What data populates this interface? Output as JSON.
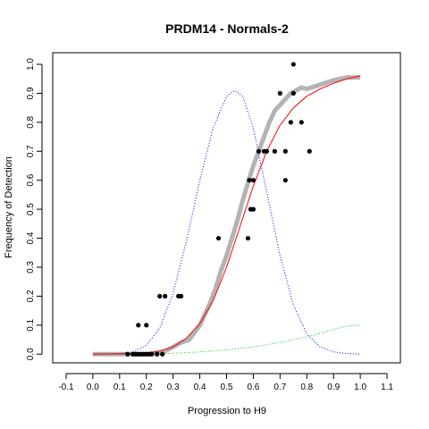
{
  "chart_data": {
    "type": "scatter",
    "title": "PRDM14 - Normals-2",
    "xlabel": "Progression to H9",
    "ylabel": "Frequency of Detection",
    "xlim": [
      -0.15,
      1.15
    ],
    "ylim": [
      -0.03,
      1.04
    ],
    "x_ticks": [
      "-0.1",
      "0.0",
      "0.1",
      "0.2",
      "0.3",
      "0.4",
      "0.5",
      "0.6",
      "0.7",
      "0.8",
      "0.9",
      "1.0",
      "1.1"
    ],
    "y_ticks": [
      "0.0",
      "0.1",
      "0.2",
      "0.3",
      "0.4",
      "0.5",
      "0.6",
      "0.7",
      "0.8",
      "0.9",
      "1.0"
    ],
    "grid": false,
    "legend": "none",
    "colors": {
      "observed": "#000000",
      "smoothed": "#b3b3b3",
      "fitted": "#ff0000",
      "blue_curve": "#0000ff",
      "green_curve": "#00cc00"
    },
    "series": [
      {
        "style": "black-points",
        "points": [
          [
            0.13,
            0.0
          ],
          [
            0.15,
            0.0
          ],
          [
            0.16,
            0.0
          ],
          [
            0.17,
            0.0
          ],
          [
            0.18,
            0.0
          ],
          [
            0.19,
            0.0
          ],
          [
            0.2,
            0.0
          ],
          [
            0.21,
            0.0
          ],
          [
            0.22,
            0.0
          ],
          [
            0.24,
            0.0
          ],
          [
            0.26,
            0.0
          ],
          [
            0.17,
            0.1
          ],
          [
            0.2,
            0.1
          ],
          [
            0.25,
            0.2
          ],
          [
            0.27,
            0.2
          ],
          [
            0.32,
            0.2
          ],
          [
            0.33,
            0.2
          ],
          [
            0.47,
            0.4
          ],
          [
            0.58,
            0.4
          ],
          [
            0.59,
            0.5
          ],
          [
            0.6,
            0.5
          ],
          [
            0.585,
            0.6
          ],
          [
            0.6,
            0.6
          ],
          [
            0.62,
            0.7
          ],
          [
            0.64,
            0.7
          ],
          [
            0.65,
            0.7
          ],
          [
            0.68,
            0.7
          ],
          [
            0.72,
            0.7
          ],
          [
            0.72,
            0.6
          ],
          [
            0.81,
            0.7
          ],
          [
            0.74,
            0.8
          ],
          [
            0.78,
            0.8
          ],
          [
            0.7,
            0.9
          ],
          [
            0.75,
            0.9
          ],
          [
            0.75,
            1.0
          ]
        ]
      },
      {
        "style": "grey-smoothed",
        "points": [
          [
            0.0,
            0.0
          ],
          [
            0.1,
            0.0
          ],
          [
            0.2,
            0.0
          ],
          [
            0.24,
            0.005
          ],
          [
            0.27,
            0.01
          ],
          [
            0.3,
            0.025
          ],
          [
            0.33,
            0.04
          ],
          [
            0.36,
            0.05
          ],
          [
            0.4,
            0.1
          ],
          [
            0.42,
            0.14
          ],
          [
            0.44,
            0.18
          ],
          [
            0.46,
            0.23
          ],
          [
            0.48,
            0.29
          ],
          [
            0.5,
            0.34
          ],
          [
            0.52,
            0.4
          ],
          [
            0.54,
            0.46
          ],
          [
            0.56,
            0.53
          ],
          [
            0.58,
            0.59
          ],
          [
            0.6,
            0.65
          ],
          [
            0.62,
            0.7
          ],
          [
            0.64,
            0.75
          ],
          [
            0.66,
            0.8
          ],
          [
            0.68,
            0.84
          ],
          [
            0.7,
            0.86
          ],
          [
            0.72,
            0.88
          ],
          [
            0.74,
            0.9
          ],
          [
            0.76,
            0.91
          ],
          [
            0.78,
            0.92
          ],
          [
            0.8,
            0.915
          ],
          [
            0.85,
            0.93
          ],
          [
            0.9,
            0.945
          ],
          [
            0.95,
            0.955
          ],
          [
            1.0,
            0.955
          ]
        ]
      },
      {
        "style": "red-fit",
        "points": [
          [
            0.0,
            0.0
          ],
          [
            0.1,
            0.001
          ],
          [
            0.2,
            0.004
          ],
          [
            0.25,
            0.01
          ],
          [
            0.3,
            0.025
          ],
          [
            0.35,
            0.055
          ],
          [
            0.4,
            0.105
          ],
          [
            0.45,
            0.185
          ],
          [
            0.5,
            0.3
          ],
          [
            0.55,
            0.44
          ],
          [
            0.6,
            0.58
          ],
          [
            0.65,
            0.7
          ],
          [
            0.7,
            0.79
          ],
          [
            0.75,
            0.85
          ],
          [
            0.8,
            0.89
          ],
          [
            0.85,
            0.915
          ],
          [
            0.9,
            0.935
          ],
          [
            0.95,
            0.95
          ],
          [
            1.0,
            0.96
          ]
        ]
      },
      {
        "style": "blue-dotted",
        "points": [
          [
            0.0,
            0.0
          ],
          [
            0.1,
            0.002
          ],
          [
            0.15,
            0.008
          ],
          [
            0.2,
            0.03
          ],
          [
            0.25,
            0.09
          ],
          [
            0.3,
            0.21
          ],
          [
            0.35,
            0.39
          ],
          [
            0.4,
            0.6
          ],
          [
            0.45,
            0.78
          ],
          [
            0.5,
            0.89
          ],
          [
            0.53,
            0.91
          ],
          [
            0.56,
            0.89
          ],
          [
            0.6,
            0.78
          ],
          [
            0.65,
            0.56
          ],
          [
            0.7,
            0.34
          ],
          [
            0.75,
            0.17
          ],
          [
            0.8,
            0.07
          ],
          [
            0.85,
            0.025
          ],
          [
            0.9,
            0.008
          ],
          [
            0.95,
            0.002
          ],
          [
            1.0,
            0.0
          ]
        ]
      },
      {
        "style": "green-dotted",
        "points": [
          [
            0.0,
            0.0
          ],
          [
            0.2,
            0.0
          ],
          [
            0.3,
            0.003
          ],
          [
            0.4,
            0.008
          ],
          [
            0.5,
            0.015
          ],
          [
            0.6,
            0.025
          ],
          [
            0.7,
            0.04
          ],
          [
            0.8,
            0.06
          ],
          [
            0.85,
            0.072
          ],
          [
            0.9,
            0.085
          ],
          [
            0.95,
            0.097
          ],
          [
            1.0,
            0.1
          ]
        ]
      }
    ]
  }
}
